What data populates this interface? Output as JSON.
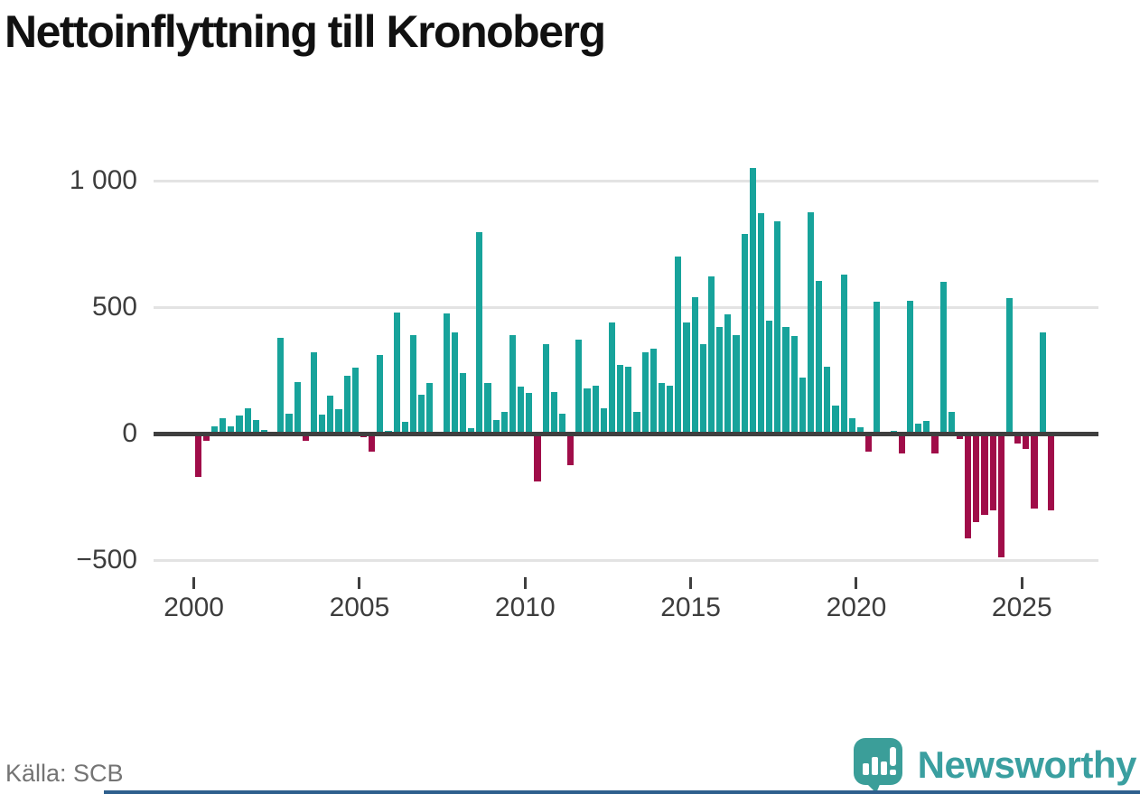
{
  "title": "Nettoinflyttning till Kronoberg",
  "source": "Källa: SCB",
  "brand": {
    "name": "Newsworthy",
    "text_color": "#3a9fa0",
    "icon": "newsworthy-bubble-chart-icon",
    "icon_color": "#3b9e99"
  },
  "colors": {
    "positive_bar": "#17a39b",
    "negative_bar": "#a00d49",
    "gridline": "#e3e3e3",
    "zero_line": "#3f3f3f",
    "axis_text": "#3d3d3d",
    "source_text": "#747474",
    "bottom_strip": "#2e5f8d"
  },
  "chart_data": {
    "type": "bar",
    "title": "Nettoinflyttning till Kronoberg",
    "frequency": "quarterly",
    "start": "2000-Q1",
    "end": "2025-Q4",
    "start_year": 2000,
    "ylim": [
      -550,
      1100
    ],
    "grid": "horizontal",
    "x_ticks": [
      2000,
      2005,
      2010,
      2015,
      2020,
      2025
    ],
    "y_ticks": [
      {
        "label": "1 000",
        "value": 1000
      },
      {
        "label": "500",
        "value": 500
      },
      {
        "label": "0",
        "value": 0
      },
      {
        "label": "−500",
        "value": -500
      }
    ],
    "values": [
      -170,
      -30,
      30,
      60,
      30,
      70,
      100,
      55,
      15,
      5,
      380,
      80,
      205,
      -30,
      320,
      75,
      150,
      95,
      230,
      260,
      -15,
      -70,
      310,
      10,
      480,
      45,
      390,
      155,
      200,
      -10,
      475,
      400,
      240,
      20,
      795,
      200,
      55,
      85,
      390,
      185,
      160,
      -190,
      355,
      165,
      80,
      -125,
      370,
      180,
      190,
      100,
      440,
      270,
      265,
      85,
      320,
      335,
      200,
      190,
      700,
      440,
      540,
      355,
      620,
      420,
      470,
      390,
      790,
      1050,
      870,
      445,
      840,
      420,
      385,
      220,
      875,
      605,
      265,
      110,
      630,
      60,
      25,
      -70,
      520,
      5,
      10,
      -80,
      525,
      40,
      50,
      -80,
      600,
      85,
      -20,
      -415,
      -350,
      -320,
      -305,
      -490,
      535,
      -40,
      -60,
      -295,
      400,
      -305
    ]
  }
}
